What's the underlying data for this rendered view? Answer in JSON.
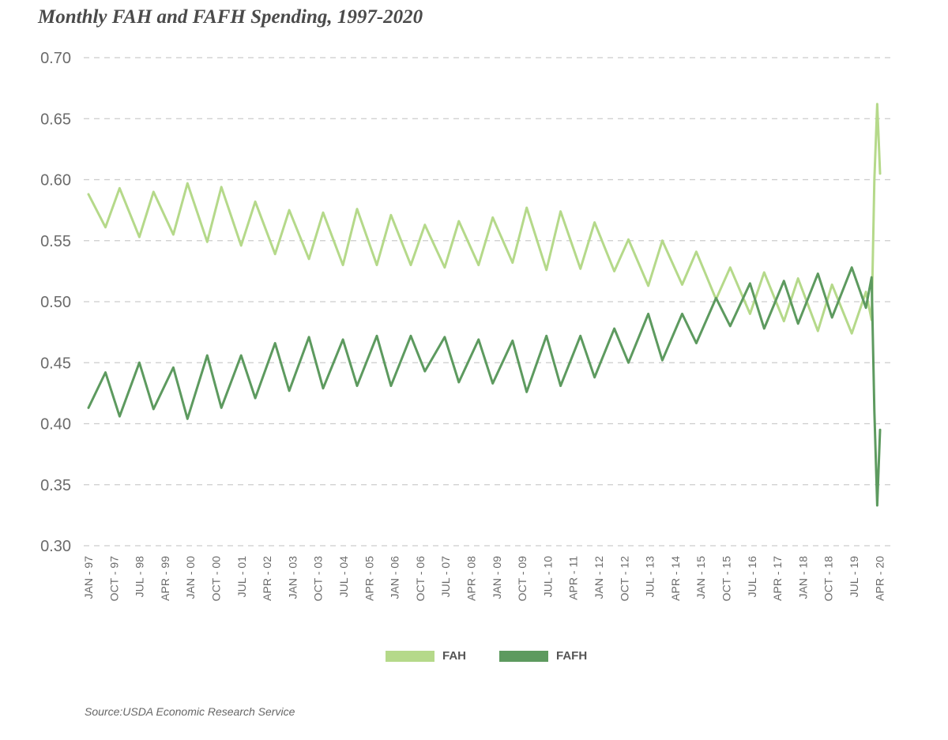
{
  "title": "Monthly FAH and FAFH Spending, 1997-2020",
  "source": "Source:USDA Economic Research Service",
  "colors": {
    "fah": "#b5d98a",
    "fafh": "#5d9a5f",
    "grid": "#cccccc",
    "text": "#6b6b6b"
  },
  "legend": [
    {
      "label": "FAH",
      "color": "#b5d98a"
    },
    {
      "label": "FAFH",
      "color": "#5d9a5f"
    }
  ],
  "chart_data": {
    "type": "line",
    "title": "Monthly FAH and FAFH Spending, 1997-2020",
    "xlabel": "",
    "ylabel": "",
    "ylim": [
      0.3,
      0.7
    ],
    "yticks": [
      "0.30",
      "0.35",
      "0.40",
      "0.45",
      "0.50",
      "0.55",
      "0.60",
      "0.65",
      "0.70"
    ],
    "grid": true,
    "legend_position": "bottom",
    "xticks": [
      "JAN - 97",
      "OCT - 97",
      "JUL - 98",
      "APR - 99",
      "JAN - 00",
      "OCT - 00",
      "JUL - 01",
      "APR - 02",
      "JAN - 03",
      "OCT - 03",
      "JUL - 04",
      "APR - 05",
      "JAN - 06",
      "OCT - 06",
      "JUL - 07",
      "APR - 08",
      "JAN - 09",
      "OCT - 09",
      "JUL - 10",
      "APR - 11",
      "JAN - 12",
      "OCT - 12",
      "JUL - 13",
      "APR - 14",
      "JAN - 15",
      "OCT - 15",
      "JUL - 16",
      "APR - 17",
      "JAN - 18",
      "OCT - 18",
      "JUL - 19",
      "APR - 20"
    ],
    "x": [
      "Jan-97",
      "Jul-97",
      "Dec-97",
      "Jul-98",
      "Dec-98",
      "Jul-99",
      "Dec-99",
      "Jul-00",
      "Dec-00",
      "Jul-01",
      "Dec-01",
      "Jul-02",
      "Dec-02",
      "Jul-03",
      "Dec-03",
      "Jul-04",
      "Dec-04",
      "Jul-05",
      "Dec-05",
      "Jul-06",
      "Dec-06",
      "Jul-07",
      "Dec-07",
      "Jul-08",
      "Dec-08",
      "Jul-09",
      "Dec-09",
      "Jul-10",
      "Dec-10",
      "Jul-11",
      "Dec-11",
      "Jul-12",
      "Dec-12",
      "Jul-13",
      "Dec-13",
      "Jul-14",
      "Dec-14",
      "Jul-15",
      "Dec-15",
      "Jul-16",
      "Dec-16",
      "Jul-17",
      "Dec-17",
      "Jul-18",
      "Dec-18",
      "Jul-19",
      "Dec-19",
      "Feb-20",
      "Mar-20",
      "Apr-20",
      "May-20"
    ],
    "series": [
      {
        "name": "FAH",
        "values": [
          0.588,
          0.561,
          0.593,
          0.553,
          0.59,
          0.555,
          0.597,
          0.549,
          0.594,
          0.546,
          0.582,
          0.539,
          0.575,
          0.535,
          0.573,
          0.53,
          0.576,
          0.53,
          0.571,
          0.53,
          0.563,
          0.528,
          0.566,
          0.53,
          0.569,
          0.532,
          0.577,
          0.526,
          0.574,
          0.527,
          0.565,
          0.525,
          0.551,
          0.513,
          0.55,
          0.514,
          0.541,
          0.502,
          0.528,
          0.49,
          0.524,
          0.484,
          0.519,
          0.476,
          0.514,
          0.474,
          0.508,
          0.485,
          0.6,
          0.662,
          0.605
        ]
      },
      {
        "name": "FAFH",
        "values": [
          0.413,
          0.442,
          0.406,
          0.45,
          0.412,
          0.446,
          0.404,
          0.456,
          0.413,
          0.456,
          0.421,
          0.466,
          0.427,
          0.471,
          0.429,
          0.469,
          0.431,
          0.472,
          0.431,
          0.472,
          0.443,
          0.471,
          0.434,
          0.469,
          0.433,
          0.468,
          0.426,
          0.472,
          0.431,
          0.472,
          0.438,
          0.478,
          0.45,
          0.49,
          0.452,
          0.49,
          0.466,
          0.503,
          0.48,
          0.515,
          0.478,
          0.517,
          0.482,
          0.523,
          0.487,
          0.528,
          0.495,
          0.52,
          0.41,
          0.333,
          0.395
        ]
      }
    ]
  }
}
